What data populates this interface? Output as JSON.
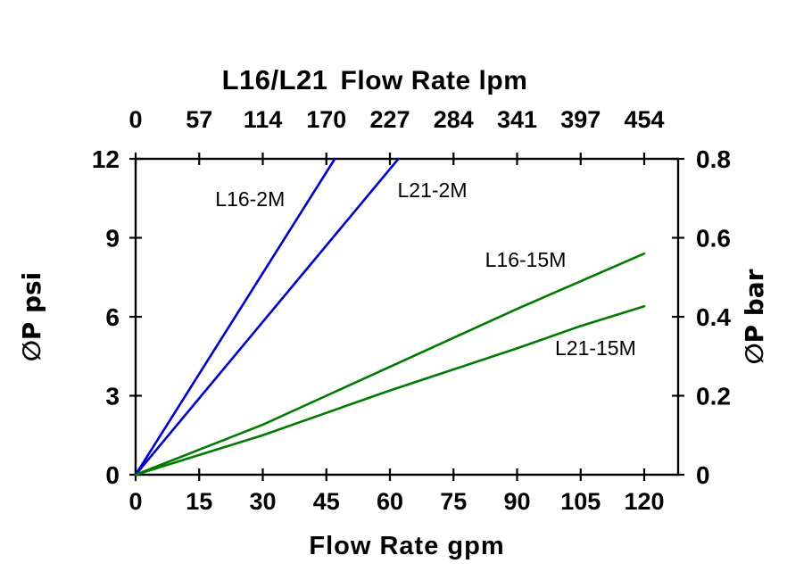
{
  "page": {
    "title_model": "L16/L21",
    "title_axis": "Flow Rate lpm",
    "bottom_axis_label": "Flow Rate gpm",
    "left_axis_label": "∅P psi",
    "right_axis_label": "∅P bar"
  },
  "chart_data": {
    "type": "line",
    "title": "L16/L21 Flow Rate lpm",
    "xlabel": "Flow Rate gpm",
    "xlabel_top": "Flow Rate lpm",
    "ylabel_left": "∅P psi",
    "ylabel_right": "∅P bar",
    "x_ticks_gpm": [
      "0",
      "15",
      "30",
      "45",
      "60",
      "75",
      "90",
      "105",
      "120"
    ],
    "x_ticks_lpm": [
      "0",
      "57",
      "114",
      "170",
      "227",
      "284",
      "341",
      "397",
      "454"
    ],
    "y_ticks_psi": [
      "0",
      "3",
      "6",
      "9",
      "12"
    ],
    "y_ticks_bar": [
      "0",
      "0.2",
      "0.4",
      "0.6",
      "0.8"
    ],
    "xlim": [
      0,
      128
    ],
    "ylim": [
      0,
      12
    ],
    "grid": false,
    "legend_position": "inline-labels",
    "colors": {
      "2M_lines": "#0000cc",
      "15M_lines": "#007a00",
      "axis": "#000000"
    },
    "series": [
      {
        "name": "L16-2M",
        "color": "#0000cc",
        "x": [
          0,
          47
        ],
        "y": [
          0,
          12
        ],
        "label_pos": {
          "x": 27,
          "y": 10.2
        }
      },
      {
        "name": "L21-2M",
        "color": "#0000cc",
        "x": [
          0,
          62
        ],
        "y": [
          0,
          12
        ],
        "label_pos": {
          "x": 70,
          "y": 10.55
        }
      },
      {
        "name": "L16-15M",
        "color": "#007a00",
        "x": [
          0,
          15,
          30,
          45,
          60,
          75,
          90,
          105,
          120
        ],
        "y": [
          0,
          0.95,
          1.9,
          3.0,
          4.1,
          5.2,
          6.3,
          7.35,
          8.4
        ],
        "label_pos": {
          "x": 92,
          "y": 7.9
        }
      },
      {
        "name": "L21-15M",
        "color": "#007a00",
        "x": [
          0,
          15,
          30,
          45,
          60,
          75,
          90,
          105,
          120
        ],
        "y": [
          0,
          0.75,
          1.5,
          2.35,
          3.2,
          4.0,
          4.8,
          5.65,
          6.4
        ],
        "label_pos": {
          "x": 108.5,
          "y": 4.55
        }
      }
    ]
  }
}
